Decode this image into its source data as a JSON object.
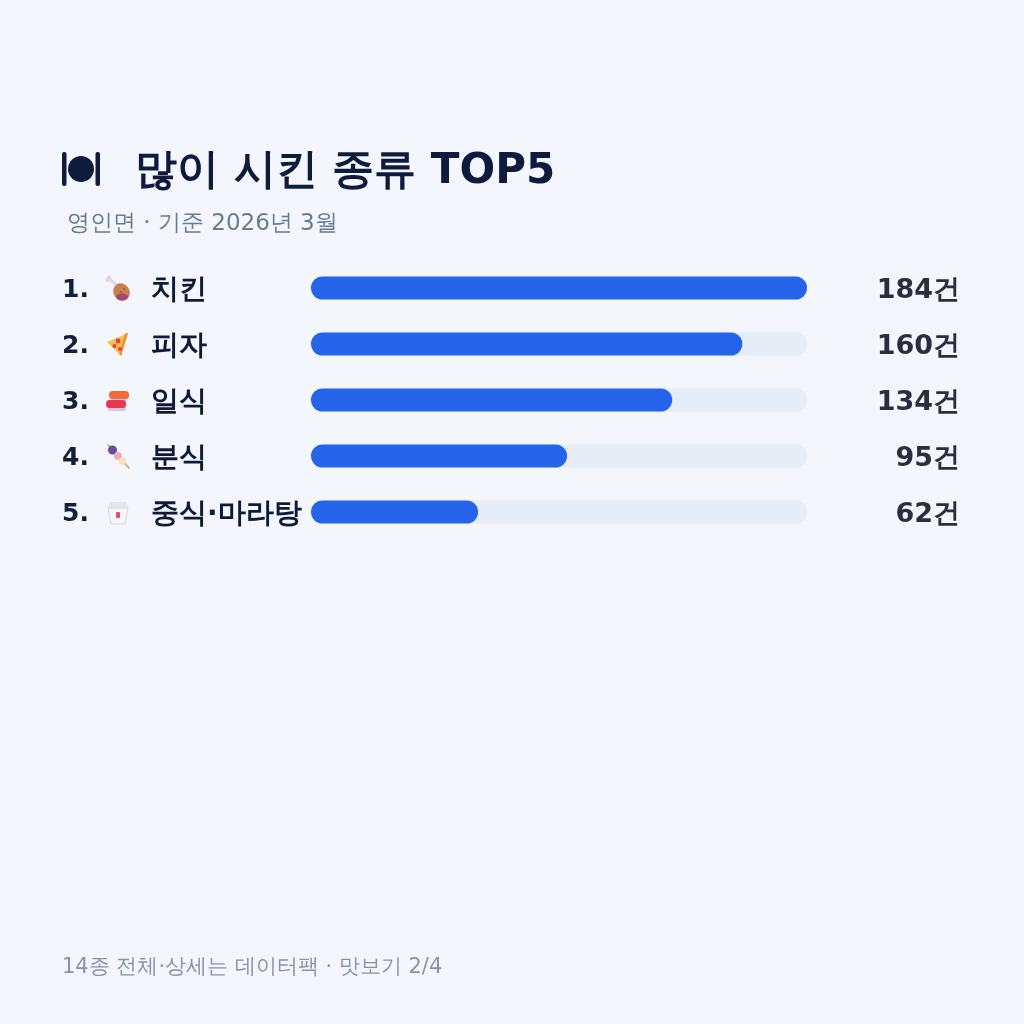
{
  "chart_data": {
    "type": "bar",
    "orientation": "horizontal",
    "title": "많이 시킨 종류 TOP5",
    "subtitle": "영인면 · 기준 2026년 3월",
    "categories": [
      "1. 치킨",
      "2. 피자",
      "3. 일식",
      "4. 분식",
      "5. 중식·마라탕"
    ],
    "values": [
      184,
      160,
      134,
      95,
      62
    ],
    "value_labels": [
      "184건",
      "160건",
      "134건",
      "95건",
      "62건"
    ],
    "color": "#2563eb",
    "xlim": [
      0,
      184
    ],
    "tick_labels": "y",
    "annotations": [
      "14종 전체·상세는 데이터팩 · 맛보기 2/4"
    ]
  }
}
